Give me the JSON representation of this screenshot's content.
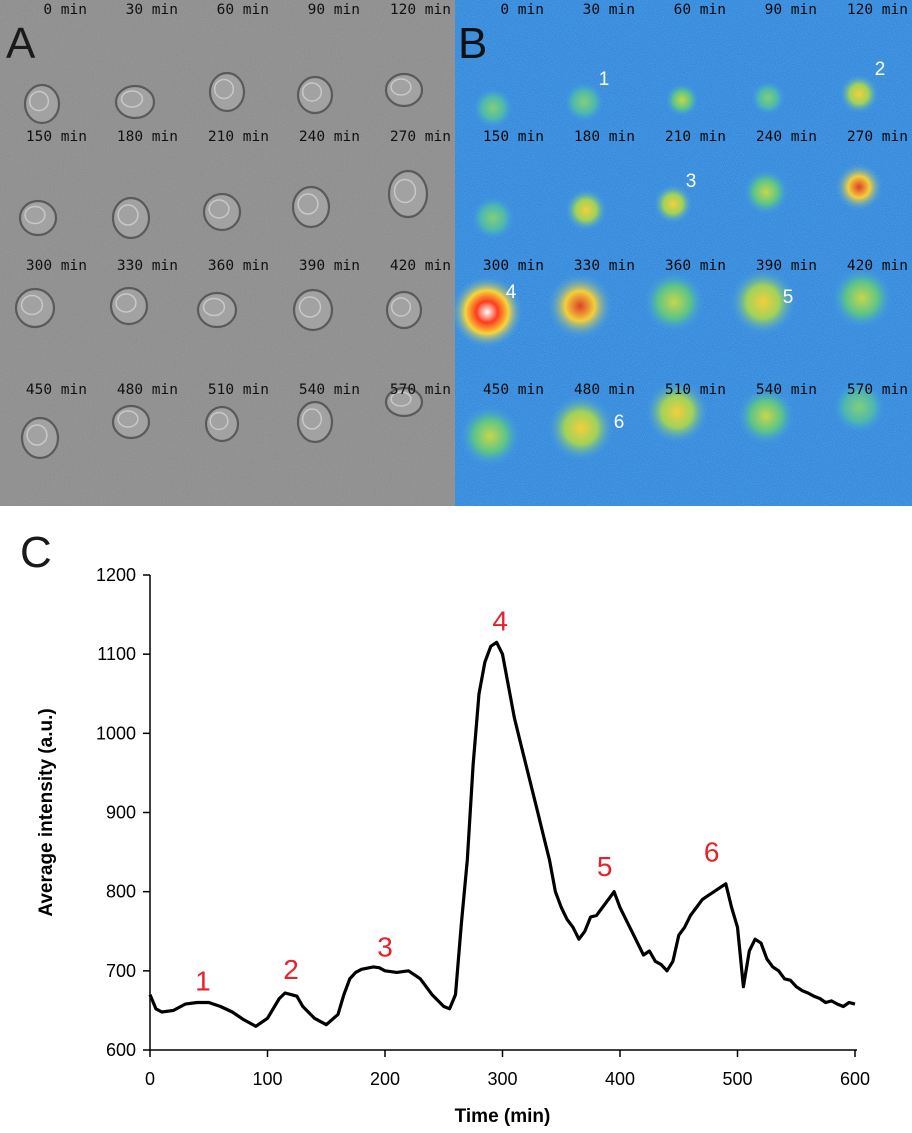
{
  "panels": {
    "a": "A",
    "b": "B",
    "c": "C"
  },
  "microscopy": {
    "rows": [
      [
        "0 min",
        "30 min",
        "60 min",
        "90 min",
        "120 min"
      ],
      [
        "150 min",
        "180 min",
        "210 min",
        "240 min",
        "270 min"
      ],
      [
        "300 min",
        "330 min",
        "360 min",
        "390 min",
        "420 min"
      ],
      [
        "450 min",
        "480 min",
        "510 min",
        "540 min",
        "570 min"
      ]
    ],
    "fluorescence_numbers": [
      "1",
      "2",
      "3",
      "4",
      "5",
      "6"
    ]
  },
  "chart_data": {
    "type": "line",
    "title": "",
    "xlabel": "Time (min)",
    "ylabel": "Average intensity (a.u.)",
    "xlim": [
      0,
      600
    ],
    "ylim": [
      600,
      1200
    ],
    "xticks": [
      0,
      100,
      200,
      300,
      400,
      500,
      600
    ],
    "yticks": [
      600,
      700,
      800,
      900,
      1000,
      1100,
      1200
    ],
    "series": [
      {
        "name": "Average intensity",
        "color": "#000000",
        "x": [
          0,
          5,
          10,
          20,
          30,
          40,
          50,
          60,
          70,
          80,
          90,
          100,
          110,
          115,
          120,
          125,
          130,
          140,
          150,
          160,
          165,
          170,
          175,
          180,
          190,
          195,
          200,
          210,
          220,
          230,
          240,
          250,
          255,
          260,
          265,
          270,
          275,
          280,
          285,
          290,
          295,
          300,
          305,
          310,
          315,
          320,
          325,
          330,
          335,
          340,
          345,
          350,
          355,
          360,
          365,
          370,
          375,
          380,
          385,
          390,
          395,
          400,
          405,
          410,
          415,
          420,
          425,
          430,
          435,
          440,
          445,
          450,
          455,
          460,
          465,
          470,
          475,
          480,
          485,
          490,
          495,
          500,
          505,
          510,
          515,
          520,
          525,
          530,
          535,
          540,
          545,
          550,
          555,
          560,
          565,
          570,
          575,
          580,
          585,
          590,
          595,
          600
        ],
        "values": [
          670,
          652,
          648,
          650,
          658,
          660,
          660,
          655,
          648,
          638,
          630,
          640,
          665,
          672,
          670,
          668,
          655,
          640,
          632,
          645,
          670,
          690,
          698,
          702,
          705,
          704,
          700,
          698,
          700,
          690,
          670,
          655,
          652,
          670,
          760,
          840,
          960,
          1050,
          1090,
          1110,
          1115,
          1100,
          1060,
          1020,
          990,
          960,
          930,
          900,
          870,
          840,
          800,
          780,
          765,
          755,
          740,
          750,
          768,
          770,
          780,
          790,
          800,
          780,
          765,
          750,
          735,
          720,
          725,
          712,
          708,
          700,
          712,
          745,
          755,
          770,
          780,
          790,
          795,
          800,
          805,
          810,
          780,
          755,
          680,
          725,
          740,
          735,
          715,
          705,
          700,
          690,
          688,
          680,
          675,
          672,
          668,
          665,
          660,
          662,
          658,
          655,
          660,
          658
        ]
      }
    ],
    "annotations": [
      {
        "label": "1",
        "x": 45,
        "y": 675,
        "color": "#e8202a"
      },
      {
        "label": "2",
        "x": 120,
        "y": 690,
        "color": "#e8202a"
      },
      {
        "label": "3",
        "x": 200,
        "y": 718,
        "color": "#e8202a"
      },
      {
        "label": "4",
        "x": 298,
        "y": 1130,
        "color": "#e8202a"
      },
      {
        "label": "5",
        "x": 387,
        "y": 820,
        "color": "#e8202a"
      },
      {
        "label": "6",
        "x": 478,
        "y": 838,
        "color": "#e8202a"
      }
    ]
  }
}
